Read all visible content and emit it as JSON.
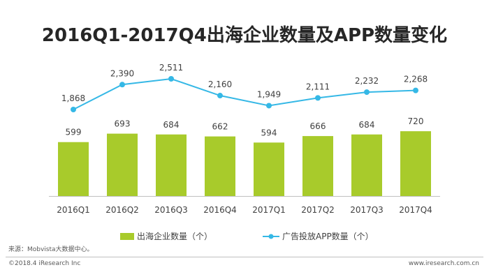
{
  "title": "2016Q1-2017Q4出海企业数量及APP数量变化",
  "source": "来源：Mobvista大数据中心。",
  "copyright": "©2018.4 iResearch Inc",
  "site": "www.iresearch.com.cn",
  "chart_data": {
    "type": "bar",
    "categories": [
      "2016Q1",
      "2016Q2",
      "2016Q3",
      "2016Q4",
      "2017Q1",
      "2017Q2",
      "2017Q3",
      "2017Q4"
    ],
    "series": [
      {
        "name": "出海企业数量（个）",
        "type": "bar",
        "color": "#a8cb2b",
        "values": [
          599,
          693,
          684,
          662,
          594,
          666,
          684,
          720
        ]
      },
      {
        "name": "广告投放APP数量（个）",
        "type": "line",
        "color": "#35b8e6",
        "values": [
          1868,
          2390,
          2511,
          2160,
          1949,
          2111,
          2232,
          2268
        ]
      }
    ],
    "grid": false,
    "legend_position": "bottom"
  }
}
